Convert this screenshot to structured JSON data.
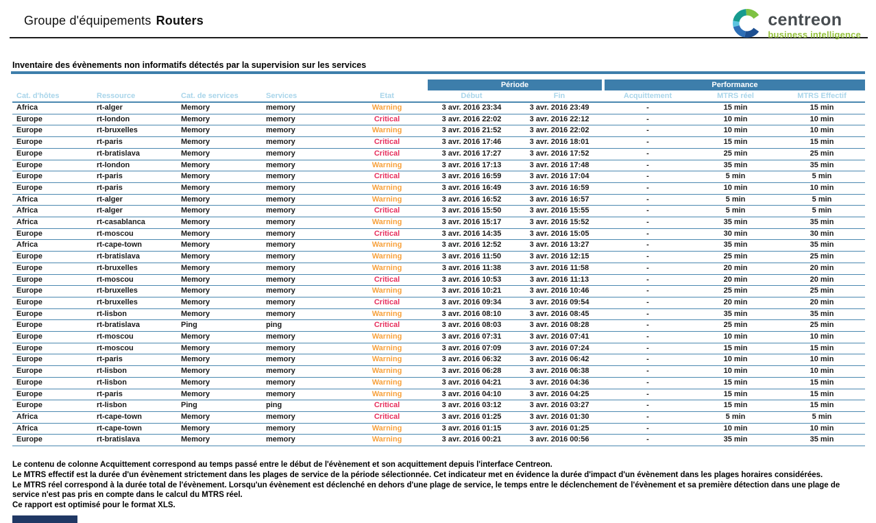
{
  "header": {
    "title_prefix": "Groupe d'équipements",
    "title_value": "Routers",
    "logo": {
      "brand": "centreon",
      "tagline": "business intelligence"
    }
  },
  "section_title": "Inventaire des évènements non informatifs détectés par la supervision sur les services",
  "table": {
    "group_headers": {
      "periode": "Période",
      "performance": "Performance"
    },
    "columns": [
      "Cat. d'hôtes",
      "Ressource",
      "Cat. de services",
      "Services",
      "Etat",
      "Début",
      "Fin",
      "Acquittement",
      "MTRS réel",
      "MTRS Effectif"
    ],
    "state_colors": {
      "Warning": "#f7a13c",
      "Critical": "#e62e5c"
    },
    "rows": [
      [
        "Africa",
        "rt-alger",
        "Memory",
        "memory",
        "Warning",
        "3 avr. 2016 23:34",
        "3 avr. 2016 23:49",
        "-",
        "15 min",
        "15 min"
      ],
      [
        "Europe",
        "rt-london",
        "Memory",
        "memory",
        "Critical",
        "3 avr. 2016 22:02",
        "3 avr. 2016 22:12",
        "-",
        "10 min",
        "10 min"
      ],
      [
        "Europe",
        "rt-bruxelles",
        "Memory",
        "memory",
        "Warning",
        "3 avr. 2016 21:52",
        "3 avr. 2016 22:02",
        "-",
        "10 min",
        "10 min"
      ],
      [
        "Europe",
        "rt-paris",
        "Memory",
        "memory",
        "Critical",
        "3 avr. 2016 17:46",
        "3 avr. 2016 18:01",
        "-",
        "15 min",
        "15 min"
      ],
      [
        "Europe",
        "rt-bratislava",
        "Memory",
        "memory",
        "Critical",
        "3 avr. 2016 17:27",
        "3 avr. 2016 17:52",
        "-",
        "25 min",
        "25 min"
      ],
      [
        "Europe",
        "rt-london",
        "Memory",
        "memory",
        "Warning",
        "3 avr. 2016 17:13",
        "3 avr. 2016 17:48",
        "-",
        "35 min",
        "35 min"
      ],
      [
        "Europe",
        "rt-paris",
        "Memory",
        "memory",
        "Critical",
        "3 avr. 2016 16:59",
        "3 avr. 2016 17:04",
        "-",
        "5 min",
        "5 min"
      ],
      [
        "Europe",
        "rt-paris",
        "Memory",
        "memory",
        "Warning",
        "3 avr. 2016 16:49",
        "3 avr. 2016 16:59",
        "-",
        "10 min",
        "10 min"
      ],
      [
        "Africa",
        "rt-alger",
        "Memory",
        "memory",
        "Warning",
        "3 avr. 2016 16:52",
        "3 avr. 2016 16:57",
        "-",
        "5 min",
        "5 min"
      ],
      [
        "Africa",
        "rt-alger",
        "Memory",
        "memory",
        "Critical",
        "3 avr. 2016 15:50",
        "3 avr. 2016 15:55",
        "-",
        "5 min",
        "5 min"
      ],
      [
        "Africa",
        "rt-casablanca",
        "Memory",
        "memory",
        "Warning",
        "3 avr. 2016 15:17",
        "3 avr. 2016 15:52",
        "-",
        "35 min",
        "35 min"
      ],
      [
        "Europe",
        "rt-moscou",
        "Memory",
        "memory",
        "Critical",
        "3 avr. 2016 14:35",
        "3 avr. 2016 15:05",
        "-",
        "30 min",
        "30 min"
      ],
      [
        "Africa",
        "rt-cape-town",
        "Memory",
        "memory",
        "Warning",
        "3 avr. 2016 12:52",
        "3 avr. 2016 13:27",
        "-",
        "35 min",
        "35 min"
      ],
      [
        "Europe",
        "rt-bratislava",
        "Memory",
        "memory",
        "Warning",
        "3 avr. 2016 11:50",
        "3 avr. 2016 12:15",
        "-",
        "25 min",
        "25 min"
      ],
      [
        "Europe",
        "rt-bruxelles",
        "Memory",
        "memory",
        "Warning",
        "3 avr. 2016 11:38",
        "3 avr. 2016 11:58",
        "-",
        "20 min",
        "20 min"
      ],
      [
        "Europe",
        "rt-moscou",
        "Memory",
        "memory",
        "Critical",
        "3 avr. 2016 10:53",
        "3 avr. 2016 11:13",
        "-",
        "20 min",
        "20 min"
      ],
      [
        "Europe",
        "rt-bruxelles",
        "Memory",
        "memory",
        "Warning",
        "3 avr. 2016 10:21",
        "3 avr. 2016 10:46",
        "-",
        "25 min",
        "25 min"
      ],
      [
        "Europe",
        "rt-bruxelles",
        "Memory",
        "memory",
        "Critical",
        "3 avr. 2016 09:34",
        "3 avr. 2016 09:54",
        "-",
        "20 min",
        "20 min"
      ],
      [
        "Europe",
        "rt-lisbon",
        "Memory",
        "memory",
        "Warning",
        "3 avr. 2016 08:10",
        "3 avr. 2016 08:45",
        "-",
        "35 min",
        "35 min"
      ],
      [
        "Europe",
        "rt-bratislava",
        "Ping",
        "ping",
        "Critical",
        "3 avr. 2016 08:03",
        "3 avr. 2016 08:28",
        "-",
        "25 min",
        "25 min"
      ],
      [
        "Europe",
        "rt-moscou",
        "Memory",
        "memory",
        "Warning",
        "3 avr. 2016 07:31",
        "3 avr. 2016 07:41",
        "-",
        "10 min",
        "10 min"
      ],
      [
        "Europe",
        "rt-moscou",
        "Memory",
        "memory",
        "Warning",
        "3 avr. 2016 07:09",
        "3 avr. 2016 07:24",
        "-",
        "15 min",
        "15 min"
      ],
      [
        "Europe",
        "rt-paris",
        "Memory",
        "memory",
        "Warning",
        "3 avr. 2016 06:32",
        "3 avr. 2016 06:42",
        "-",
        "10 min",
        "10 min"
      ],
      [
        "Europe",
        "rt-lisbon",
        "Memory",
        "memory",
        "Warning",
        "3 avr. 2016 06:28",
        "3 avr. 2016 06:38",
        "-",
        "10 min",
        "10 min"
      ],
      [
        "Europe",
        "rt-lisbon",
        "Memory",
        "memory",
        "Warning",
        "3 avr. 2016 04:21",
        "3 avr. 2016 04:36",
        "-",
        "15 min",
        "15 min"
      ],
      [
        "Europe",
        "rt-paris",
        "Memory",
        "memory",
        "Warning",
        "3 avr. 2016 04:10",
        "3 avr. 2016 04:25",
        "-",
        "15 min",
        "15 min"
      ],
      [
        "Europe",
        "rt-lisbon",
        "Ping",
        "ping",
        "Critical",
        "3 avr. 2016 03:12",
        "3 avr. 2016 03:27",
        "-",
        "15 min",
        "15 min"
      ],
      [
        "Africa",
        "rt-cape-town",
        "Memory",
        "memory",
        "Critical",
        "3 avr. 2016 01:25",
        "3 avr. 2016 01:30",
        "-",
        "5 min",
        "5 min"
      ],
      [
        "Africa",
        "rt-cape-town",
        "Memory",
        "memory",
        "Warning",
        "3 avr. 2016 01:15",
        "3 avr. 2016 01:25",
        "-",
        "10 min",
        "10 min"
      ],
      [
        "Europe",
        "rt-bratislava",
        "Memory",
        "memory",
        "Warning",
        "3 avr. 2016 00:21",
        "3 avr. 2016 00:56",
        "-",
        "35 min",
        "35 min"
      ]
    ]
  },
  "footer_notes": [
    "Le contenu de colonne Acquittement correspond au temps passé entre le début de l'évènement et son acquittement depuis l'interface Centreon.",
    "Le MTRS effectif est la durée d'un évènement strictement dans les plages de service de la période sélectionnée. Cet indicateur met en évidence la durée d'impact d'un évènement dans les plages horaires considérées.",
    "Le MTRS réel correspond à la durée total de l'évènement. Lorsqu'un évènement est déclenché en dehors d'une plage de service, le temps entre le déclenchement de l'évènement et sa première détection dans une plage de service n'est pas pris en compte dans le calcul du MTRS réel.",
    "Ce rapport est optimisé pour le format XLS."
  ],
  "colors": {
    "accent_blue": "#3d7eab",
    "subheader_text": "#a9d5ea",
    "row_line": "#4987af",
    "warning": "#f7a13c",
    "critical": "#e62e5c",
    "brand_green": "#96c23d",
    "brand_gray": "#474c50",
    "navy_bar": "#203864"
  }
}
